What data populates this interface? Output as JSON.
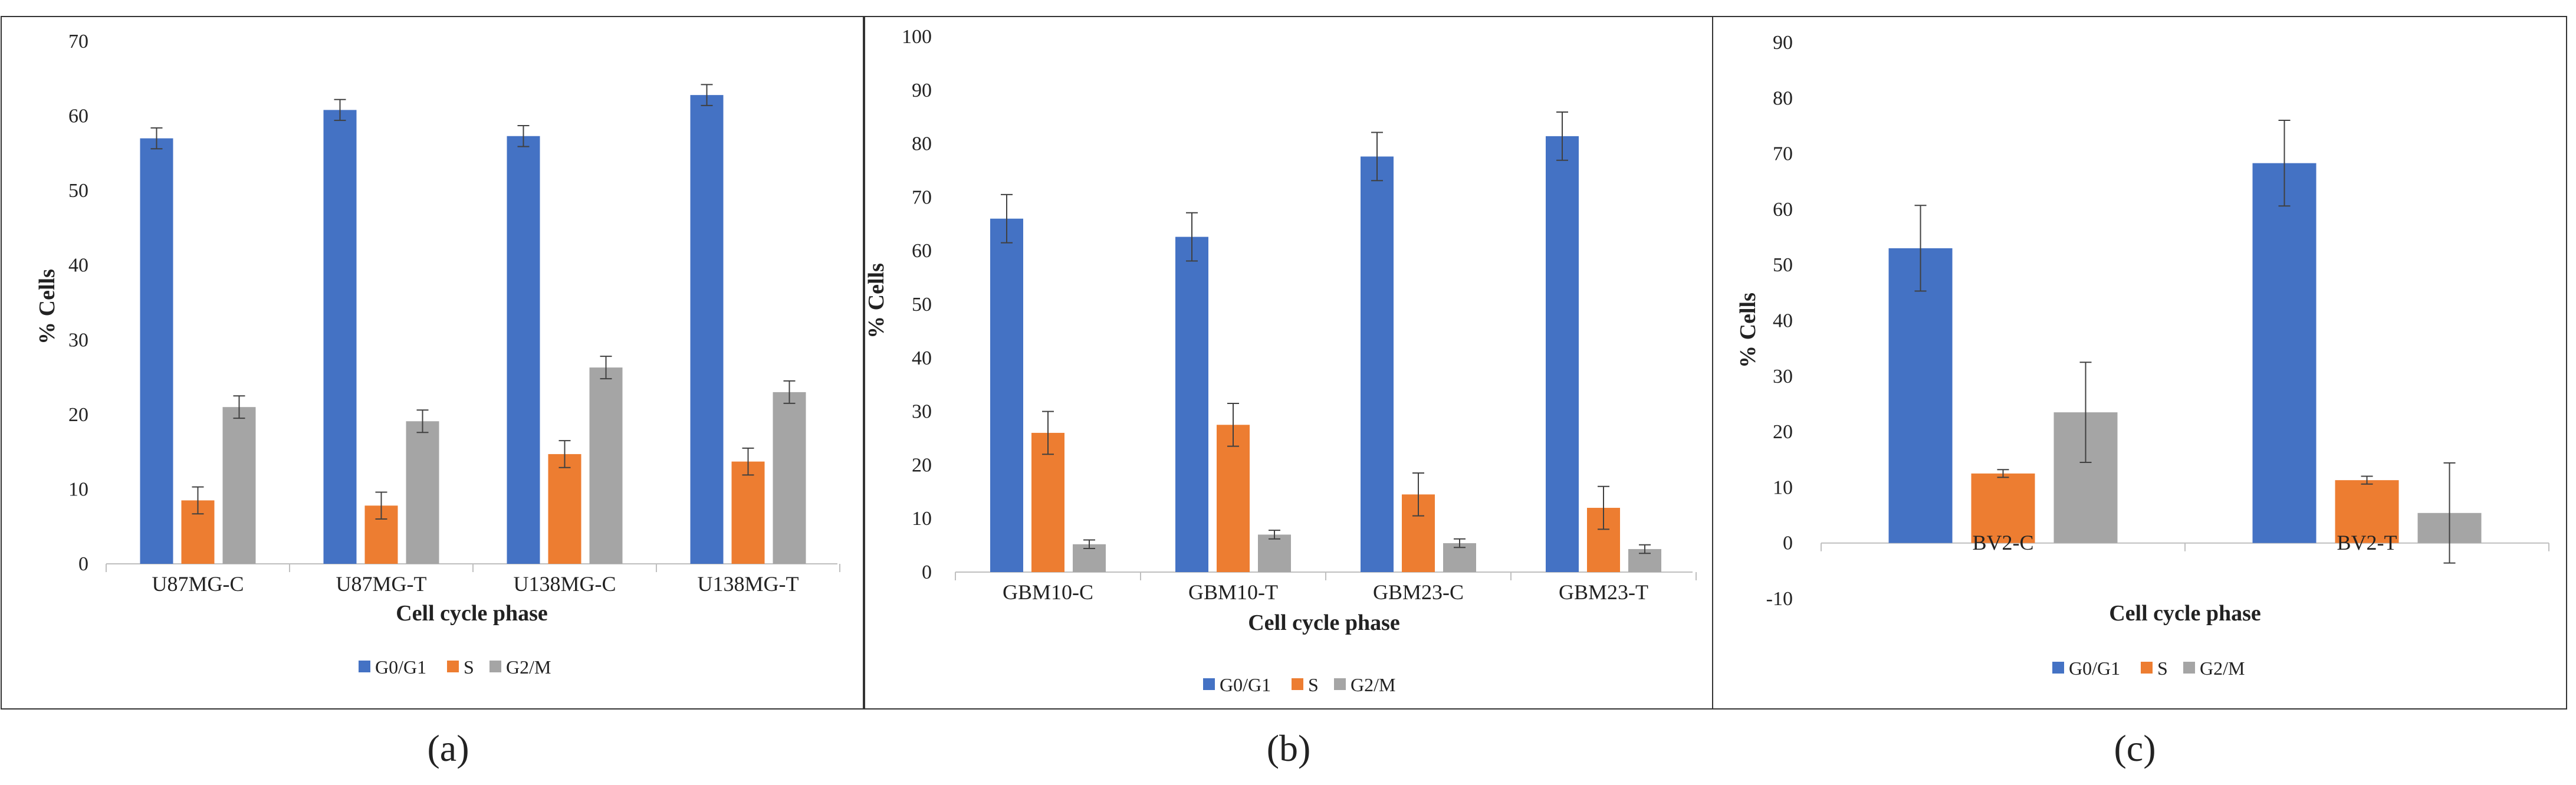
{
  "chart_data": [
    {
      "type": "bar",
      "panel_label": "(a)",
      "categories": [
        "U87MG-C",
        "U87MG-T",
        "U138MG-C",
        "U138MG-T"
      ],
      "series": [
        {
          "name": "G0/G1",
          "color": "#4472C4",
          "values": [
            57.0,
            60.8,
            57.3,
            62.8
          ],
          "errors": [
            1.4,
            1.4,
            1.4,
            1.4
          ]
        },
        {
          "name": "S",
          "color": "#ED7D31",
          "values": [
            8.5,
            7.8,
            14.7,
            13.7
          ],
          "errors": [
            1.8,
            1.8,
            1.8,
            1.8
          ]
        },
        {
          "name": "G2/M",
          "color": "#A5A5A5",
          "values": [
            21.0,
            19.1,
            26.3,
            23.0
          ],
          "errors": [
            1.5,
            1.5,
            1.5,
            1.5
          ]
        }
      ],
      "yticks": [
        "0",
        "10",
        "20",
        "30",
        "40",
        "50",
        "60",
        "70"
      ],
      "ylim": [
        0,
        70
      ],
      "xlabel": "Cell cycle phase",
      "ylabel": "% Cells",
      "legend_position": "bottom-center"
    },
    {
      "type": "bar",
      "panel_label": "(b)",
      "categories": [
        "GBM10-C",
        "GBM10-T",
        "GBM23-C",
        "GBM23-T"
      ],
      "series": [
        {
          "name": "G0/G1",
          "color": "#4472C4",
          "values": [
            66.0,
            62.6,
            77.6,
            81.4
          ],
          "errors": [
            4.5,
            4.5,
            4.5,
            4.5
          ]
        },
        {
          "name": "S",
          "color": "#ED7D31",
          "values": [
            26.0,
            27.5,
            14.5,
            12.0
          ],
          "errors": [
            4.0,
            4.0,
            4.0,
            4.0
          ]
        },
        {
          "name": "G2/M",
          "color": "#A5A5A5",
          "values": [
            5.2,
            7.0,
            5.4,
            4.3
          ],
          "errors": [
            0.8,
            0.8,
            0.8,
            0.8
          ]
        }
      ],
      "yticks": [
        "0",
        "10",
        "20",
        "30",
        "40",
        "50",
        "60",
        "70",
        "80",
        "90",
        "100"
      ],
      "ylim": [
        0,
        100
      ],
      "xlabel": "Cell cycle phase",
      "ylabel": "% Cells",
      "legend_position": "bottom-center"
    },
    {
      "type": "bar",
      "panel_label": "(c)",
      "categories": [
        "BV2-C",
        "BV2-T"
      ],
      "series": [
        {
          "name": "G0/G1",
          "color": "#4472C4",
          "values": [
            53.0,
            68.3
          ],
          "errors": [
            7.7,
            7.7
          ]
        },
        {
          "name": "S",
          "color": "#ED7D31",
          "values": [
            12.5,
            11.3
          ],
          "errors": [
            0.7,
            0.7
          ]
        },
        {
          "name": "G2/M",
          "color": "#A5A5A5",
          "values": [
            23.5,
            5.4
          ],
          "errors": [
            9.0,
            9.0
          ]
        }
      ],
      "yticks": [
        "-10",
        "0",
        "10",
        "20",
        "30",
        "40",
        "50",
        "60",
        "70",
        "80",
        "90"
      ],
      "ylim": [
        -10,
        90
      ],
      "xlabel": "Cell cycle phase",
      "ylabel": "% Cells",
      "legend_position": "bottom-center"
    }
  ]
}
